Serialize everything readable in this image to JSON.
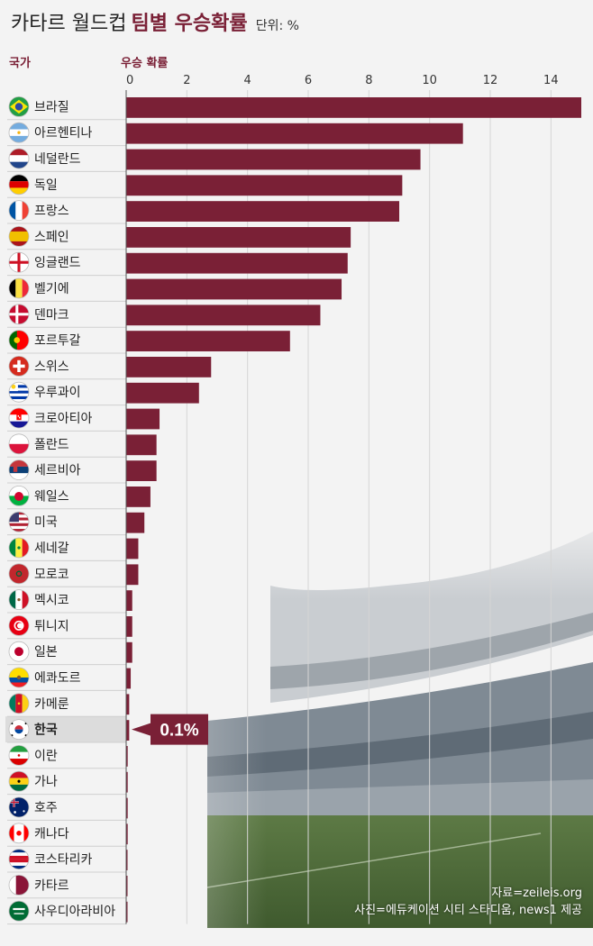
{
  "header": {
    "title_main": "카타르 월드컵",
    "title_bold": "팀별 우승확률",
    "unit": "단위: %",
    "col_country": "국가",
    "col_prob": "우승 확률"
  },
  "chart_data": {
    "type": "bar",
    "orientation": "horizontal",
    "xlim": [
      0,
      15
    ],
    "ticks": [
      0,
      2,
      4,
      6,
      8,
      10,
      12,
      14
    ],
    "grid": true,
    "bar_color": "#7a2036",
    "highlight_color": "#dcdcdc",
    "categories": [
      "브라질",
      "아르헨티나",
      "네덜란드",
      "독일",
      "프랑스",
      "스페인",
      "잉글랜드",
      "벨기에",
      "덴마크",
      "포르투갈",
      "스위스",
      "우루과이",
      "크로아티아",
      "폴란드",
      "세르비아",
      "웨일스",
      "미국",
      "세네갈",
      "모로코",
      "멕시코",
      "튀니지",
      "일본",
      "에콰도르",
      "카메룬",
      "한국",
      "이란",
      "가나",
      "호주",
      "캐나다",
      "코스타리카",
      "카타르",
      "사우디아라비아"
    ],
    "values": [
      15.0,
      11.1,
      9.7,
      9.1,
      9.0,
      7.4,
      7.3,
      7.1,
      6.4,
      5.4,
      2.8,
      2.4,
      1.1,
      1.0,
      1.0,
      0.8,
      0.6,
      0.4,
      0.4,
      0.2,
      0.2,
      0.2,
      0.15,
      0.1,
      0.1,
      0.05,
      0.05,
      0.05,
      0.05,
      0.03,
      0.03,
      0.02
    ],
    "highlight": "한국",
    "callout": "0.1%",
    "flag_icons": [
      "brazil-flag-icon",
      "argentina-flag-icon",
      "netherlands-flag-icon",
      "germany-flag-icon",
      "france-flag-icon",
      "spain-flag-icon",
      "england-flag-icon",
      "belgium-flag-icon",
      "denmark-flag-icon",
      "portugal-flag-icon",
      "switzerland-flag-icon",
      "uruguay-flag-icon",
      "croatia-flag-icon",
      "poland-flag-icon",
      "serbia-flag-icon",
      "wales-flag-icon",
      "usa-flag-icon",
      "senegal-flag-icon",
      "morocco-flag-icon",
      "mexico-flag-icon",
      "tunisia-flag-icon",
      "japan-flag-icon",
      "ecuador-flag-icon",
      "cameroon-flag-icon",
      "korea-flag-icon",
      "iran-flag-icon",
      "ghana-flag-icon",
      "australia-flag-icon",
      "canada-flag-icon",
      "costa-rica-flag-icon",
      "qatar-flag-icon",
      "saudi-arabia-flag-icon"
    ]
  },
  "footer": {
    "source": "자료=zeileis.org",
    "photo_credit": "사진=에듀케이션 시티 스타디움, news1 제공"
  }
}
